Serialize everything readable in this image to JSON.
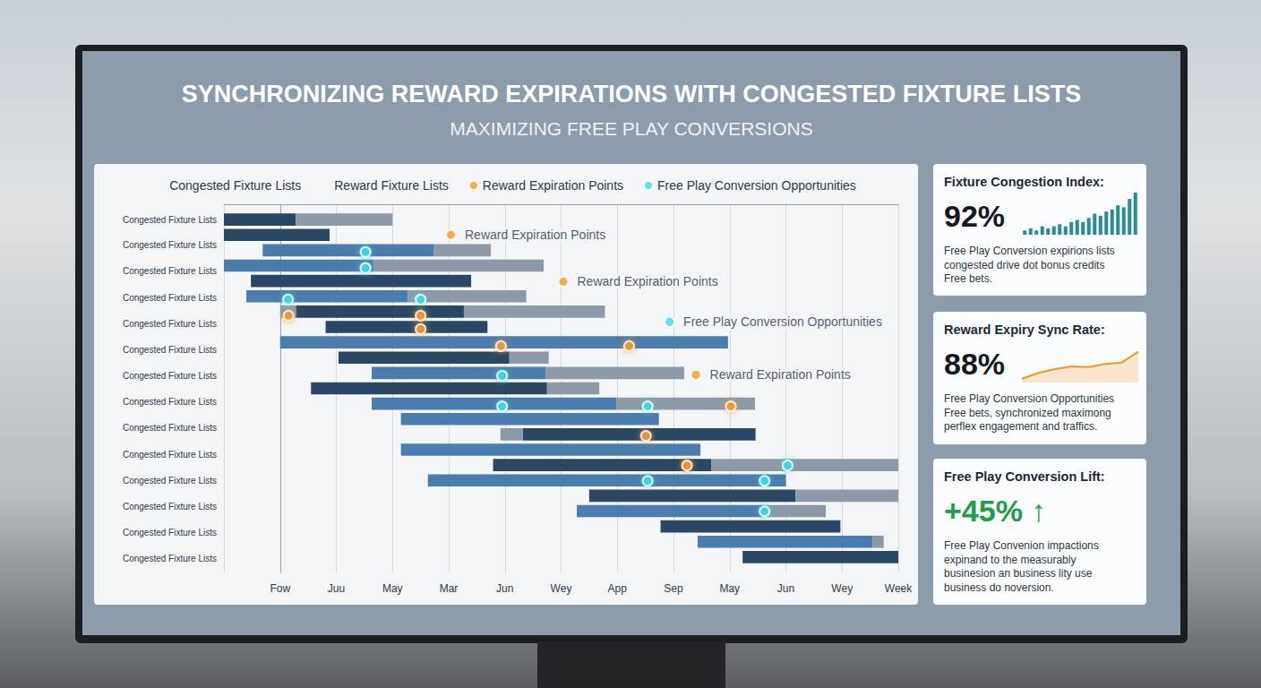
{
  "header": {
    "title": "SYNCHRONIZING REWARD EXPIRATIONS WITH CONGESTED FIXTURE LISTS",
    "subtitle": "MAXIMIZING FREE PLAY CONVERSIONS"
  },
  "chart_data": {
    "type": "gantt",
    "legend": "top",
    "grid": "x",
    "xlim": [
      -1,
      11
    ],
    "xticks": [
      {
        "value": 0,
        "label": "Fow"
      },
      {
        "value": 1,
        "label": "Juu"
      },
      {
        "value": 2,
        "label": "May"
      },
      {
        "value": 3,
        "label": "Mar"
      },
      {
        "value": 4,
        "label": "Jun"
      },
      {
        "value": 5,
        "label": "Wey"
      },
      {
        "value": 6,
        "label": "App"
      },
      {
        "value": 7,
        "label": "Sep"
      },
      {
        "value": 8,
        "label": "May"
      },
      {
        "value": 9,
        "label": "Jun"
      },
      {
        "value": 10,
        "label": "Wey"
      },
      {
        "value": 11,
        "label": "Week"
      }
    ],
    "ylim": [
      0,
      24
    ],
    "yticks": [
      {
        "value": 1,
        "label": "Congested Fixture Lists"
      },
      {
        "value": 2.64,
        "label": "Congested Fixture Lists"
      },
      {
        "value": 4.34,
        "label": "Congested Fixture Lists"
      },
      {
        "value": 6.09,
        "label": "Congested Fixture Lists"
      },
      {
        "value": 7.79,
        "label": "Congested Fixture Lists"
      },
      {
        "value": 9.48,
        "label": "Congested Fixture Lists"
      },
      {
        "value": 11.18,
        "label": "Congested Fixture Lists"
      },
      {
        "value": 12.88,
        "label": "Congested Fixture Lists"
      },
      {
        "value": 14.58,
        "label": "Congested Fixture Lists"
      },
      {
        "value": 16.33,
        "label": "Congested Fixture Lists"
      },
      {
        "value": 18.03,
        "label": "Congested Fixture Lists"
      },
      {
        "value": 19.72,
        "label": "Congested Fixture Lists"
      },
      {
        "value": 21.42,
        "label": "Congested Fixture Lists"
      },
      {
        "value": 23.12,
        "label": "Congested Fixture Lists"
      }
    ],
    "series": [
      {
        "name": "Congested Fixture Lists",
        "type": "bar",
        "color": "#2c4764",
        "colors": [
          "#2c4764",
          "#2c4764",
          "#4a7cad",
          "#4a7cad",
          "#2c4764",
          "#4a7cad",
          "#2c4764",
          "#2c4764",
          "#4a7cad",
          "#2c4764",
          "#4a7cad",
          "#2c4764",
          "#4a7cad",
          "#4a7cad",
          "#2c4764",
          "#4a7cad",
          "#2c4764",
          "#4a7cad",
          "#2c4764",
          "#4a7cad",
          "#2c4764",
          "#4a7cad",
          "#2c4764"
        ],
        "values": [
          [
            1,
            -1,
            0.28
          ],
          [
            2,
            -1,
            0.88
          ],
          [
            3,
            -0.31,
            2.74
          ],
          [
            4,
            -1,
            1.66
          ],
          [
            5,
            -0.52,
            3.4
          ],
          [
            6,
            -0.6,
            2.27
          ],
          [
            7,
            0.28,
            3.27
          ],
          [
            8,
            0.81,
            3.69
          ],
          [
            9,
            0,
            7.97
          ],
          [
            10,
            1.04,
            4.08
          ],
          [
            11,
            1.63,
            4.73
          ],
          [
            12,
            0.55,
            4.75
          ],
          [
            13,
            1.63,
            5.99
          ],
          [
            14,
            2.15,
            6.74
          ],
          [
            15,
            4.32,
            8.46
          ],
          [
            16,
            2.15,
            7.48
          ],
          [
            17,
            3.79,
            7.67
          ],
          [
            18,
            2.63,
            9
          ],
          [
            19,
            5.5,
            9.17
          ],
          [
            20,
            5.28,
            8.62
          ],
          [
            21,
            6.77,
            9.97
          ],
          [
            22,
            7.43,
            10.54
          ],
          [
            23,
            8.23,
            11
          ]
        ]
      },
      {
        "name": "Reward Fixture Lists",
        "type": "bar",
        "color": "#8d99a6",
        "values": [
          [
            1,
            0.28,
            2
          ],
          [
            3,
            2.74,
            3.75
          ],
          [
            4,
            1.66,
            4.69
          ],
          [
            6,
            2.27,
            4.38
          ],
          [
            7,
            0,
            0.28
          ],
          [
            7,
            3.27,
            5.78
          ],
          [
            10,
            4.08,
            4.78
          ],
          [
            11,
            4.73,
            7.19
          ],
          [
            12,
            4.75,
            5.68
          ],
          [
            13,
            5.99,
            8.45
          ],
          [
            15,
            3.92,
            4.32
          ],
          [
            17,
            7.67,
            11
          ],
          [
            19,
            9.17,
            11
          ],
          [
            20,
            8.62,
            9.71
          ],
          [
            22,
            10.54,
            10.74
          ]
        ]
      },
      {
        "name": "Reward Expiration Points",
        "type": "scatter",
        "color": "#f39a2e",
        "values": [
          [
            0.15,
            7.26
          ],
          [
            2.5,
            7.26
          ],
          [
            2.5,
            8.14
          ],
          [
            3.93,
            9.25
          ],
          [
            6.21,
            9.25
          ],
          [
            8.02,
            13.17
          ],
          [
            6.51,
            15.1
          ],
          [
            7.24,
            17.03
          ]
        ]
      },
      {
        "name": "Free Play Conversion Opportunities",
        "type": "scatter",
        "color": "#3fd8e8",
        "values": [
          [
            1.52,
            3.11
          ],
          [
            1.52,
            4.16
          ],
          [
            0.14,
            6.21
          ],
          [
            2.5,
            6.21
          ],
          [
            3.95,
            11.18
          ],
          [
            3.95,
            13.17
          ],
          [
            6.54,
            13.17
          ],
          [
            6.54,
            18.03
          ],
          [
            8.62,
            18.03
          ],
          [
            9.03,
            17.03
          ],
          [
            8.62,
            20.02
          ]
        ]
      }
    ],
    "annotations": [
      {
        "text": "Reward Expiration Points",
        "x": 3.04,
        "y": 1.99,
        "color": "#f39a2e"
      },
      {
        "text": "Reward Expiration Points",
        "x": 5.04,
        "y": 5.04,
        "color": "#f39a2e"
      },
      {
        "text": "Free Play Conversion Opportunities",
        "x": 6.93,
        "y": 7.67,
        "color": "#3fd8e8"
      },
      {
        "text": "Reward Expiration Points",
        "x": 7.4,
        "y": 11.12,
        "color": "#f39a2e"
      }
    ]
  },
  "cards": [
    {
      "title": "Fixture Congestion Index:",
      "value": "92%",
      "body": [
        "Free Play Conversion expirions lists",
        "congested drive dot bonus credits",
        "Free bets."
      ],
      "chart_data": {
        "type": "bar",
        "color": "#2b8c96",
        "tick_labels": false,
        "ylim": [
          0,
          10
        ],
        "values": [
          1,
          1.5,
          1,
          2,
          1.5,
          2,
          2.5,
          2,
          3,
          3.5,
          3,
          4,
          5,
          4.5,
          5.5,
          6,
          7,
          6.5,
          8.5,
          10
        ]
      }
    },
    {
      "title": "Reward Expiry Sync Rate:",
      "value": "88%",
      "body": [
        "Free Play Conversion Opportunities",
        "Free bets, synchronized maximong",
        "perflex engagement and traffics."
      ],
      "chart_data": {
        "type": "line",
        "color": "#f0962a",
        "tick_labels": false,
        "ylim": [
          0,
          10
        ],
        "values": [
          1,
          2.5,
          3.5,
          4.2,
          4,
          4.8,
          5.2,
          8
        ]
      }
    },
    {
      "title": "Free Play Conversion Lift:",
      "value": "+45% ↑",
      "color": "#1e9e4a",
      "body": [
        "Free Play Convenion impactions",
        "expinand to the measurably",
        "businesion an business lity use",
        "business do noversion."
      ]
    }
  ]
}
